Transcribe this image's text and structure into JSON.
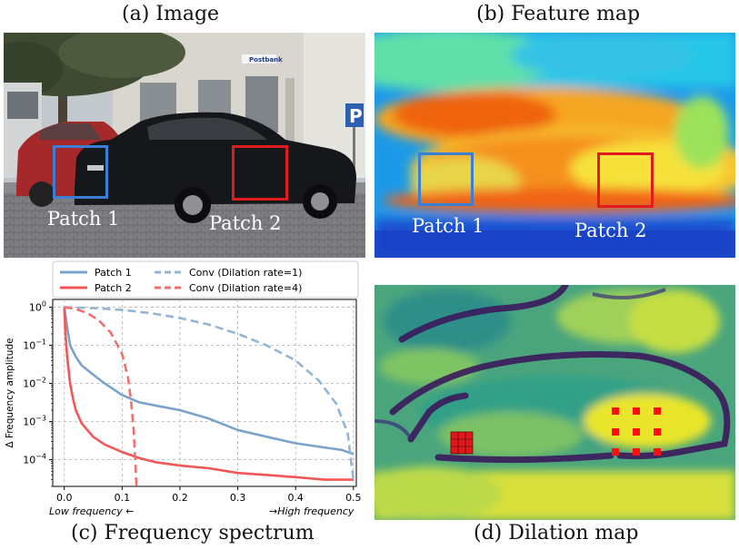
{
  "captions": {
    "a": "(a) Image",
    "b": "(b) Feature map",
    "c": "(c) Frequency spectrum",
    "d": "(d) Dilation map"
  },
  "photo": {
    "sign_text": "Postbank",
    "parking_letter": "P"
  },
  "patches": {
    "patch1": {
      "label": "Patch 1",
      "color": "#3a7fd6"
    },
    "patch2": {
      "label": "Patch 2",
      "color": "#e01b1b"
    }
  },
  "chart_data": {
    "type": "line",
    "xlabel": "",
    "ylabel": "Δ Frequency amplitude",
    "xlim": [
      -0.02,
      0.505
    ],
    "ylim": [
      2e-05,
      1.6
    ],
    "yscale": "log",
    "grid": true,
    "legend_placement": "top",
    "x_ticks": [
      "0.0",
      "0.1",
      "0.2",
      "0.3",
      "0.4",
      "0.5"
    ],
    "y_ticks": [
      "10^0",
      "10^-1",
      "10^-2",
      "10^-3",
      "10^-4"
    ],
    "x_annotations": {
      "left": "Low frequency ←",
      "right": "→High frequency"
    },
    "series": [
      {
        "name": "Patch 1",
        "style": "solid",
        "color": "#7aa3cc",
        "x": [
          0,
          0.005,
          0.01,
          0.02,
          0.03,
          0.05,
          0.07,
          0.1,
          0.13,
          0.16,
          0.2,
          0.25,
          0.3,
          0.35,
          0.4,
          0.45,
          0.48,
          0.5
        ],
        "y": [
          1,
          0.3,
          0.1,
          0.05,
          0.03,
          0.017,
          0.01,
          0.005,
          0.0032,
          0.0026,
          0.002,
          0.0012,
          0.0006,
          0.0004,
          0.00027,
          0.00021,
          0.00018,
          0.00014
        ]
      },
      {
        "name": "Patch 2",
        "style": "solid",
        "color": "#f25757",
        "x": [
          0,
          0.002,
          0.005,
          0.01,
          0.015,
          0.02,
          0.03,
          0.05,
          0.07,
          0.1,
          0.13,
          0.16,
          0.2,
          0.25,
          0.3,
          0.35,
          0.4,
          0.45,
          0.5
        ],
        "y": [
          1,
          0.2,
          0.05,
          0.01,
          0.004,
          0.002,
          0.0009,
          0.0004,
          0.00025,
          0.00016,
          0.00011,
          8.5e-05,
          7e-05,
          6e-05,
          4.5e-05,
          4e-05,
          3.5e-05,
          3e-05,
          3e-05
        ]
      },
      {
        "name": "Conv (Dilation rate=1)",
        "style": "dashed",
        "color": "#93b5d3",
        "x": [
          0,
          0.05,
          0.1,
          0.15,
          0.2,
          0.25,
          0.3,
          0.35,
          0.4,
          0.44,
          0.47,
          0.49,
          0.5
        ],
        "y": [
          1,
          0.95,
          0.85,
          0.7,
          0.52,
          0.35,
          0.2,
          0.1,
          0.04,
          0.012,
          0.003,
          0.0005,
          3e-05
        ]
      },
      {
        "name": "Conv (Dilation rate=4)",
        "style": "dashed",
        "color": "#f07070",
        "x": [
          0,
          0.02,
          0.04,
          0.06,
          0.08,
          0.1,
          0.11,
          0.115,
          0.12,
          0.125
        ],
        "y": [
          1,
          0.9,
          0.7,
          0.45,
          0.22,
          0.06,
          0.015,
          0.004,
          0.0006,
          2e-05
        ]
      }
    ]
  }
}
